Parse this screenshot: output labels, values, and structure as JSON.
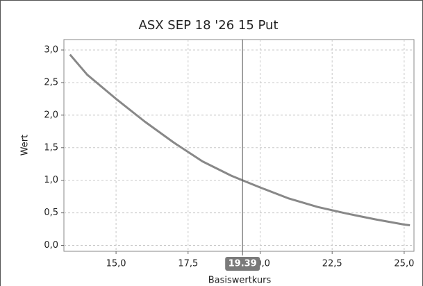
{
  "chart_data": {
    "type": "line",
    "title": "ASX SEP 18 '26 15 Put",
    "x_label": "Basiswertkurs",
    "y_label": "Wert",
    "x": [
      13.4,
      14,
      15,
      16,
      17,
      18,
      19,
      19.39,
      20,
      21,
      22,
      23,
      24,
      25,
      25.2
    ],
    "series": [
      {
        "name": "Wert",
        "color": "#888888",
        "values": [
          2.93,
          2.62,
          2.25,
          1.9,
          1.58,
          1.29,
          1.07,
          1.0,
          0.89,
          0.72,
          0.59,
          0.49,
          0.4,
          0.32,
          0.31
        ]
      }
    ],
    "xlim": [
      13.19,
      25.34
    ],
    "ylim": [
      -0.09,
      3.16
    ],
    "xticks": [
      {
        "value": 15,
        "label": "15,0"
      },
      {
        "value": 17.5,
        "label": "17,5"
      },
      {
        "value": 20,
        "label": "20,0"
      },
      {
        "value": 22.5,
        "label": "22,5"
      },
      {
        "value": 25,
        "label": "25,0"
      }
    ],
    "yticks": [
      {
        "value": 0,
        "label": "0,0"
      },
      {
        "value": 0.5,
        "label": "0,5"
      },
      {
        "value": 1,
        "label": "1,0"
      },
      {
        "value": 1.5,
        "label": "1,5"
      },
      {
        "value": 2,
        "label": "2,0"
      },
      {
        "value": 2.5,
        "label": "2,5"
      },
      {
        "value": 3,
        "label": "3,0"
      }
    ],
    "grid": true,
    "crosshair": 19.39
  }
}
